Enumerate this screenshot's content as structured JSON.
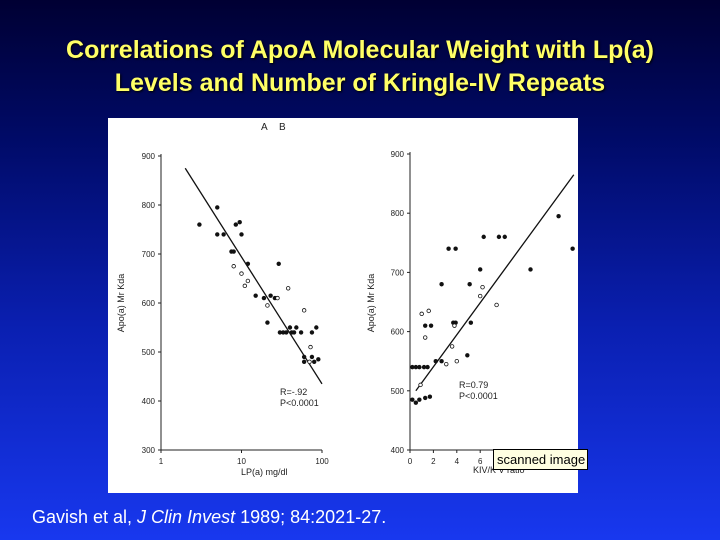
{
  "slide": {
    "title_line1": "Correlations of ApoA Molecular Weight with Lp(a)",
    "title_line2": "Levels and Number of Kringle-IV Repeats",
    "citation_authors": "Gavish et al, ",
    "citation_journal": "J Clin Invest",
    "citation_rest": " 1989; 84:2021-27.",
    "tooltip": "scanned image of p"
  },
  "colors": {
    "title": "#ffff66",
    "background_bottom": "#1838ef"
  },
  "chart_data": [
    {
      "type": "scatter",
      "title": "A",
      "xlabel": "LP(a) mg/dl",
      "ylabel": "Apo(a) Mr Kda",
      "xscale": "log",
      "xlim": [
        1,
        100
      ],
      "ylim": [
        300,
        900
      ],
      "xticks": [
        "1",
        "10",
        "100"
      ],
      "yticks": [
        "300",
        "400",
        "500",
        "600",
        "700",
        "800",
        "900"
      ],
      "annotation": [
        "R=-.92",
        "P<0.0001"
      ],
      "regression_line": [
        [
          2,
          875
        ],
        [
          100,
          435
        ]
      ],
      "series": [
        {
          "name": "filled",
          "points": [
            [
              3,
              760
            ],
            [
              5,
              795
            ],
            [
              5,
              740
            ],
            [
              6,
              740
            ],
            [
              7.5,
              705
            ],
            [
              8,
              705
            ],
            [
              8.5,
              760
            ],
            [
              9.5,
              765
            ],
            [
              10,
              740
            ],
            [
              12,
              680
            ],
            [
              15,
              615
            ],
            [
              19,
              610
            ],
            [
              21,
              560
            ],
            [
              23,
              615
            ],
            [
              26,
              610
            ],
            [
              29,
              680
            ],
            [
              30,
              540
            ],
            [
              33,
              540
            ],
            [
              36,
              540
            ],
            [
              40,
              550
            ],
            [
              42,
              540
            ],
            [
              45,
              540
            ],
            [
              48,
              550
            ],
            [
              55,
              540
            ],
            [
              60,
              490
            ],
            [
              60,
              480
            ],
            [
              75,
              540
            ],
            [
              75,
              490
            ],
            [
              80,
              480
            ],
            [
              85,
              550
            ],
            [
              90,
              485
            ]
          ]
        },
        {
          "name": "open",
          "points": [
            [
              8,
              675
            ],
            [
              10,
              660
            ],
            [
              11,
              635
            ],
            [
              12,
              645
            ],
            [
              21,
              595
            ],
            [
              28,
              610
            ],
            [
              38,
              630
            ],
            [
              60,
              585
            ],
            [
              72,
              510
            ],
            [
              70,
              480
            ]
          ]
        }
      ]
    },
    {
      "type": "scatter",
      "title": "B",
      "xlabel": "KIV/K V ratio",
      "ylabel": "Apo(a) Mr Kda",
      "xlim": [
        0,
        14
      ],
      "ylim": [
        400,
        900
      ],
      "xticks": [
        "0",
        "2",
        "4",
        "6"
      ],
      "yticks": [
        "400",
        "500",
        "600",
        "700",
        "800",
        "900"
      ],
      "annotation": [
        "R=0.79",
        "P<0.0001"
      ],
      "regression_line": [
        [
          0.5,
          500
        ],
        [
          14,
          865
        ]
      ],
      "series": [
        {
          "name": "filled",
          "points": [
            [
              0.2,
              540
            ],
            [
              0.5,
              540
            ],
            [
              0.8,
              540
            ],
            [
              1.2,
              540
            ],
            [
              1.5,
              540
            ],
            [
              0.2,
              485
            ],
            [
              0.5,
              480
            ],
            [
              0.8,
              485
            ],
            [
              1.3,
              488
            ],
            [
              1.7,
              490
            ],
            [
              1.3,
              610
            ],
            [
              1.8,
              610
            ],
            [
              2.7,
              680
            ],
            [
              2.7,
              550
            ],
            [
              2.2,
              550
            ],
            [
              3.3,
              740
            ],
            [
              3.9,
              740
            ],
            [
              3.7,
              615
            ],
            [
              3.9,
              615
            ],
            [
              4.9,
              560
            ],
            [
              5.1,
              680
            ],
            [
              5.2,
              615
            ],
            [
              6,
              705
            ],
            [
              6.3,
              760
            ],
            [
              7.6,
              760
            ],
            [
              8.1,
              760
            ],
            [
              10.3,
              705
            ],
            [
              12.7,
              795
            ],
            [
              13.9,
              740
            ]
          ]
        },
        {
          "name": "open",
          "points": [
            [
              1,
              630
            ],
            [
              1.6,
              635
            ],
            [
              1.3,
              590
            ],
            [
              0.9,
              510
            ],
            [
              3.1,
              545
            ],
            [
              3.6,
              575
            ],
            [
              4,
              550
            ],
            [
              3.8,
              610
            ],
            [
              6,
              660
            ],
            [
              6.2,
              675
            ],
            [
              7.4,
              645
            ]
          ]
        }
      ]
    }
  ]
}
